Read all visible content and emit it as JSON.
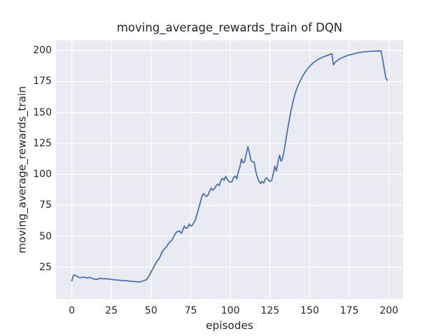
{
  "style": {
    "figure_bg": "#ffffff",
    "plot_bg": "#eaeaf2",
    "grid_color": "#ffffff",
    "line_color": "#4c72b0",
    "text_color": "#262626"
  },
  "chart_data": {
    "type": "line",
    "title": "moving_average_rewards_train of DQN",
    "xlabel": "episodes",
    "ylabel": "moving_average_rewards_train",
    "legend": false,
    "grid": true,
    "xlim": [
      -9.95,
      208.95
    ],
    "ylim": [
      -0.7,
      208.3
    ],
    "x_ticks": [
      0,
      25,
      50,
      75,
      100,
      125,
      150,
      175,
      200
    ],
    "y_ticks": [
      25,
      50,
      75,
      100,
      125,
      150,
      175,
      200
    ],
    "series": [
      {
        "name": "moving_average_rewards_train",
        "x_start": 0,
        "x_step": 1,
        "y": [
          14.0,
          18.4,
          18.6,
          17.8,
          17.2,
          16.6,
          16.7,
          16.9,
          16.9,
          16.5,
          16.2,
          16.9,
          16.5,
          15.8,
          15.5,
          15.2,
          15.1,
          15.6,
          16.2,
          15.9,
          15.6,
          15.7,
          15.8,
          15.5,
          15.3,
          15.1,
          15.0,
          14.9,
          14.7,
          14.6,
          14.5,
          14.3,
          14.2,
          14.2,
          14.1,
          14.0,
          13.8,
          13.7,
          13.6,
          13.5,
          13.4,
          13.2,
          13.1,
          13.2,
          13.5,
          14.0,
          14.4,
          14.8,
          16.5,
          18.5,
          21.2,
          23.5,
          26.0,
          28.2,
          30.5,
          31.6,
          34.5,
          37.5,
          39.1,
          40.6,
          42.0,
          44.3,
          45.6,
          46.7,
          49.0,
          51.5,
          53.3,
          54.0,
          54.3,
          52.3,
          55.0,
          58.3,
          56.4,
          57.0,
          59.9,
          58.2,
          59.0,
          61.0,
          63.5,
          68.0,
          72.5,
          77.0,
          82.0,
          84.5,
          83.0,
          82.2,
          83.5,
          86.8,
          88.9,
          87.2,
          88.5,
          90.8,
          92.1,
          91.0,
          95.0,
          96.8,
          95.4,
          98.4,
          96.0,
          94.2,
          93.8,
          94.2,
          97.5,
          98.7,
          96.4,
          102.0,
          106.0,
          112.5,
          109.2,
          110.5,
          116.5,
          122.3,
          117.5,
          111.0,
          110.2,
          110.0,
          102.5,
          97.8,
          94.5,
          92.5,
          94.3,
          93.0,
          96.3,
          97.2,
          95.3,
          94.3,
          95.2,
          100.3,
          106.6,
          102.8,
          110.0,
          115.5,
          110.5,
          113.5,
          120.5,
          128.0,
          136.0,
          143.0,
          150.0,
          156.0,
          161.5,
          166.0,
          169.5,
          172.8,
          175.5,
          178.0,
          180.3,
          182.3,
          184.2,
          185.8,
          187.3,
          188.6,
          189.8,
          190.9,
          191.8,
          192.6,
          193.3,
          194.0,
          194.6,
          195.1,
          195.6,
          196.0,
          196.5,
          197.1,
          197.5,
          188.5,
          190.5,
          191.5,
          192.5,
          193.4,
          194.0,
          194.6,
          195.1,
          195.6,
          196.1,
          196.5,
          196.8,
          197.1,
          197.5,
          197.8,
          198.1,
          198.3,
          198.5,
          198.8,
          199.0,
          199.1,
          199.2,
          199.3,
          199.4,
          199.5,
          199.5,
          199.6,
          199.6,
          199.7,
          199.7,
          199.7,
          193.0,
          185.5,
          178.0,
          176.0
        ]
      }
    ]
  }
}
